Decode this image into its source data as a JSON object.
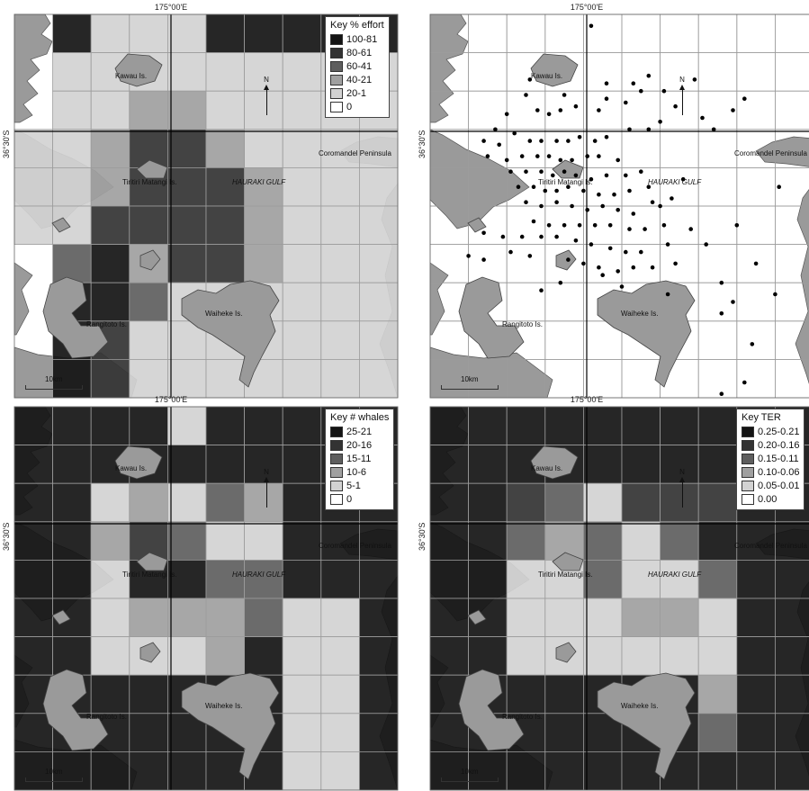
{
  "panels": [
    {
      "id": "effort",
      "longitude_label": "175°00'E",
      "latitude_label": "36°30'S",
      "legend_title": "Key % effort",
      "legend": [
        {
          "label": "100-81",
          "color": "#141414"
        },
        {
          "label": "80-61",
          "color": "#333333"
        },
        {
          "label": "60-41",
          "color": "#5e5e5e"
        },
        {
          "label": "40-21",
          "color": "#a0a0a0"
        },
        {
          "label": "20-1",
          "color": "#d2d2d2"
        },
        {
          "label": "0",
          "color": "#ffffff"
        }
      ],
      "grid": [
        [
          null,
          0,
          4,
          4,
          4,
          0,
          0,
          0,
          0,
          0
        ],
        [
          null,
          4,
          4,
          4,
          4,
          4,
          4,
          4,
          4,
          4
        ],
        [
          null,
          4,
          4,
          3,
          3,
          4,
          4,
          4,
          4,
          4
        ],
        [
          4,
          4,
          3,
          1,
          1,
          3,
          4,
          4,
          4,
          4
        ],
        [
          4,
          4,
          3,
          1,
          1,
          1,
          3,
          4,
          4,
          4
        ],
        [
          4,
          4,
          1,
          1,
          1,
          1,
          3,
          4,
          4,
          4
        ],
        [
          null,
          2,
          0,
          3,
          1,
          1,
          3,
          4,
          4,
          4
        ],
        [
          null,
          0,
          0,
          2,
          4,
          4,
          4,
          4,
          4,
          4
        ],
        [
          null,
          0,
          1,
          4,
          4,
          4,
          4,
          4,
          4,
          4
        ],
        [
          null,
          0,
          1,
          4,
          4,
          4,
          4,
          4,
          4,
          4
        ]
      ]
    },
    {
      "id": "sightings",
      "longitude_label": "175°00'E",
      "latitude_label": "36°30'S",
      "sighting_points": [
        [
          0.42,
          0.03
        ],
        [
          0.26,
          0.17
        ],
        [
          0.57,
          0.16
        ],
        [
          0.53,
          0.18
        ],
        [
          0.55,
          0.2
        ],
        [
          0.35,
          0.21
        ],
        [
          0.25,
          0.21
        ],
        [
          0.64,
          0.24
        ],
        [
          0.51,
          0.23
        ],
        [
          0.46,
          0.22
        ],
        [
          0.44,
          0.25
        ],
        [
          0.38,
          0.24
        ],
        [
          0.34,
          0.25
        ],
        [
          0.31,
          0.26
        ],
        [
          0.28,
          0.25
        ],
        [
          0.2,
          0.26
        ],
        [
          0.17,
          0.3
        ],
        [
          0.22,
          0.31
        ],
        [
          0.14,
          0.33
        ],
        [
          0.18,
          0.34
        ],
        [
          0.26,
          0.33
        ],
        [
          0.29,
          0.33
        ],
        [
          0.33,
          0.33
        ],
        [
          0.36,
          0.33
        ],
        [
          0.39,
          0.32
        ],
        [
          0.43,
          0.33
        ],
        [
          0.46,
          0.32
        ],
        [
          0.52,
          0.3
        ],
        [
          0.57,
          0.3
        ],
        [
          0.6,
          0.28
        ],
        [
          0.15,
          0.37
        ],
        [
          0.2,
          0.38
        ],
        [
          0.24,
          0.37
        ],
        [
          0.28,
          0.37
        ],
        [
          0.31,
          0.37
        ],
        [
          0.34,
          0.38
        ],
        [
          0.37,
          0.38
        ],
        [
          0.41,
          0.37
        ],
        [
          0.44,
          0.37
        ],
        [
          0.49,
          0.38
        ],
        [
          0.21,
          0.41
        ],
        [
          0.25,
          0.41
        ],
        [
          0.29,
          0.41
        ],
        [
          0.32,
          0.42
        ],
        [
          0.35,
          0.41
        ],
        [
          0.38,
          0.42
        ],
        [
          0.42,
          0.43
        ],
        [
          0.46,
          0.42
        ],
        [
          0.51,
          0.42
        ],
        [
          0.55,
          0.41
        ],
        [
          0.23,
          0.45
        ],
        [
          0.27,
          0.45
        ],
        [
          0.3,
          0.46
        ],
        [
          0.33,
          0.46
        ],
        [
          0.36,
          0.45
        ],
        [
          0.4,
          0.46
        ],
        [
          0.44,
          0.47
        ],
        [
          0.48,
          0.47
        ],
        [
          0.52,
          0.46
        ],
        [
          0.57,
          0.45
        ],
        [
          0.25,
          0.49
        ],
        [
          0.29,
          0.5
        ],
        [
          0.33,
          0.49
        ],
        [
          0.37,
          0.5
        ],
        [
          0.41,
          0.51
        ],
        [
          0.45,
          0.5
        ],
        [
          0.49,
          0.51
        ],
        [
          0.53,
          0.52
        ],
        [
          0.58,
          0.49
        ],
        [
          0.63,
          0.48
        ],
        [
          0.27,
          0.54
        ],
        [
          0.31,
          0.55
        ],
        [
          0.35,
          0.55
        ],
        [
          0.39,
          0.55
        ],
        [
          0.43,
          0.55
        ],
        [
          0.47,
          0.55
        ],
        [
          0.52,
          0.56
        ],
        [
          0.56,
          0.56
        ],
        [
          0.61,
          0.55
        ],
        [
          0.14,
          0.57
        ],
        [
          0.19,
          0.58
        ],
        [
          0.24,
          0.58
        ],
        [
          0.29,
          0.58
        ],
        [
          0.33,
          0.58
        ],
        [
          0.38,
          0.59
        ],
        [
          0.42,
          0.6
        ],
        [
          0.47,
          0.61
        ],
        [
          0.51,
          0.62
        ],
        [
          0.55,
          0.62
        ],
        [
          0.62,
          0.6
        ],
        [
          0.1,
          0.63
        ],
        [
          0.14,
          0.64
        ],
        [
          0.21,
          0.62
        ],
        [
          0.26,
          0.63
        ],
        [
          0.36,
          0.64
        ],
        [
          0.4,
          0.65
        ],
        [
          0.44,
          0.66
        ],
        [
          0.49,
          0.67
        ],
        [
          0.53,
          0.66
        ],
        [
          0.58,
          0.66
        ],
        [
          0.64,
          0.65
        ],
        [
          0.34,
          0.7
        ],
        [
          0.29,
          0.72
        ],
        [
          0.45,
          0.68
        ],
        [
          0.5,
          0.71
        ],
        [
          0.62,
          0.73
        ],
        [
          0.76,
          0.7
        ],
        [
          0.79,
          0.75
        ],
        [
          0.84,
          0.86
        ],
        [
          0.76,
          0.78
        ],
        [
          0.82,
          0.96
        ],
        [
          0.76,
          0.99
        ],
        [
          0.9,
          0.73
        ],
        [
          0.85,
          0.65
        ],
        [
          0.8,
          0.55
        ],
        [
          0.91,
          0.45
        ],
        [
          0.72,
          0.6
        ],
        [
          0.68,
          0.56
        ],
        [
          0.6,
          0.5
        ],
        [
          0.66,
          0.43
        ],
        [
          0.46,
          0.18
        ],
        [
          0.61,
          0.2
        ],
        [
          0.69,
          0.17
        ],
        [
          0.71,
          0.27
        ],
        [
          0.79,
          0.25
        ],
        [
          0.82,
          0.22
        ],
        [
          0.74,
          0.3
        ]
      ]
    },
    {
      "id": "whales",
      "longitude_label": "175°00'E",
      "latitude_label": "36°30'S",
      "legend_title": "Key # whales",
      "legend": [
        {
          "label": "25-21",
          "color": "#141414"
        },
        {
          "label": "20-16",
          "color": "#333333"
        },
        {
          "label": "15-11",
          "color": "#5e5e5e"
        },
        {
          "label": "10-6",
          "color": "#a0a0a0"
        },
        {
          "label": "5-1",
          "color": "#d2d2d2"
        },
        {
          "label": "0",
          "color": "#ffffff"
        }
      ],
      "grid": [
        [
          0,
          0,
          0,
          0,
          4,
          0,
          0,
          0,
          0,
          0
        ],
        [
          0,
          0,
          0,
          0,
          0,
          0,
          0,
          0,
          0,
          0
        ],
        [
          0,
          0,
          4,
          3,
          4,
          2,
          3,
          0,
          0,
          0
        ],
        [
          0,
          0,
          3,
          1,
          2,
          4,
          4,
          0,
          0,
          0
        ],
        [
          0,
          0,
          4,
          0,
          0,
          2,
          2,
          0,
          0,
          0
        ],
        [
          0,
          0,
          4,
          3,
          3,
          3,
          2,
          4,
          4,
          0
        ],
        [
          0,
          0,
          4,
          4,
          4,
          3,
          0,
          4,
          4,
          0
        ],
        [
          0,
          0,
          0,
          0,
          0,
          0,
          0,
          4,
          4,
          0
        ],
        [
          0,
          0,
          0,
          0,
          0,
          0,
          0,
          4,
          4,
          0
        ],
        [
          0,
          0,
          0,
          0,
          0,
          0,
          0,
          4,
          4,
          0
        ]
      ]
    },
    {
      "id": "ter",
      "longitude_label": "175°00'E",
      "latitude_label": "36°30'S",
      "legend_title": "Key TER",
      "legend": [
        {
          "label": "0.25-0.21",
          "color": "#141414"
        },
        {
          "label": "0.20-0.16",
          "color": "#333333"
        },
        {
          "label": "0.15-0.11",
          "color": "#5e5e5e"
        },
        {
          "label": "0.10-0.06",
          "color": "#a0a0a0"
        },
        {
          "label": "0.05-0.01",
          "color": "#d2d2d2"
        },
        {
          "label": "0.00",
          "color": "#ffffff"
        }
      ],
      "grid": [
        [
          0,
          0,
          0,
          0,
          0,
          0,
          0,
          0,
          0,
          0
        ],
        [
          0,
          0,
          0,
          0,
          0,
          0,
          0,
          0,
          0,
          0
        ],
        [
          0,
          0,
          1,
          2,
          4,
          1,
          1,
          1,
          0,
          0
        ],
        [
          0,
          0,
          2,
          3,
          2,
          4,
          2,
          0,
          0,
          0
        ],
        [
          0,
          0,
          4,
          4,
          2,
          4,
          4,
          2,
          0,
          0
        ],
        [
          0,
          0,
          4,
          4,
          4,
          3,
          3,
          4,
          0,
          0
        ],
        [
          0,
          0,
          4,
          4,
          4,
          4,
          4,
          4,
          0,
          0
        ],
        [
          0,
          0,
          0,
          0,
          0,
          0,
          0,
          3,
          0,
          0
        ],
        [
          0,
          0,
          0,
          0,
          0,
          0,
          0,
          2,
          0,
          0
        ],
        [
          0,
          0,
          0,
          0,
          0,
          0,
          0,
          0,
          0,
          0
        ]
      ]
    }
  ],
  "places": {
    "kawau": "Kawau Is.",
    "tiritiri": "Tiritiri Matangi Is.",
    "hauraki": "HAURAKI GULF",
    "coromandel": "Coromandel Peninsula",
    "waiheke": "Waiheke Is.",
    "rangitoto": "Rangitoto Is."
  },
  "north_label": "N",
  "scale_label": "10km"
}
